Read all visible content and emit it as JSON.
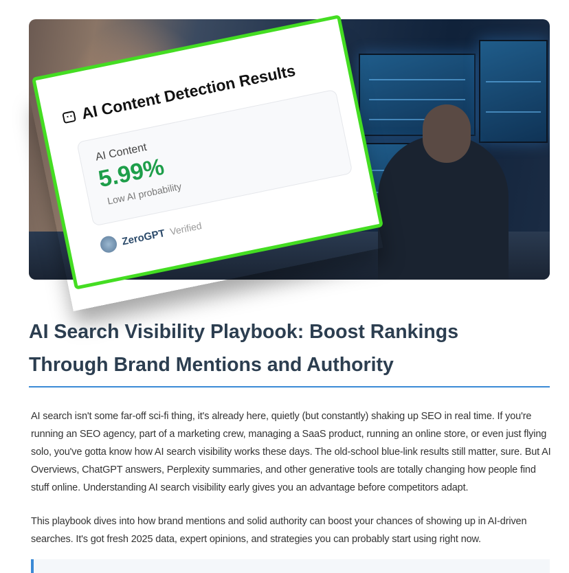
{
  "hero": {
    "card": {
      "icon": "robot-icon",
      "title": "AI Content Detection Results",
      "metric_label": "AI Content",
      "metric_value": "5.99%",
      "metric_note": "Low AI probability",
      "brand": "ZeroGPT",
      "badge": "Verified",
      "border_color": "#44dd22",
      "value_color": "#1e9e4a"
    }
  },
  "article": {
    "title": "AI Search Visibility Playbook: Boost Rankings Through Brand Mentions and Authority",
    "paragraphs": [
      "AI search isn't some far-off sci-fi thing, it's already here, quietly (but constantly) shaking up SEO in real time. If you're running an SEO agency, part of a marketing crew, managing a SaaS product, running an online store, or even just flying solo, you've gotta know how AI search visibility works these days. The old-school blue-link results still matter, sure. But AI Overviews, ChatGPT answers, Perplexity summaries, and other generative tools are totally changing how people find stuff online. Understanding AI search visibility early gives you an advantage before competitors adapt.",
      "This playbook dives into how brand mentions and solid authority can boost your chances of showing up in AI-driven searches. It's got fresh 2025 data, expert opinions, and strategies you can probably start using right now."
    ],
    "accent_color": "#3a8ad6"
  }
}
